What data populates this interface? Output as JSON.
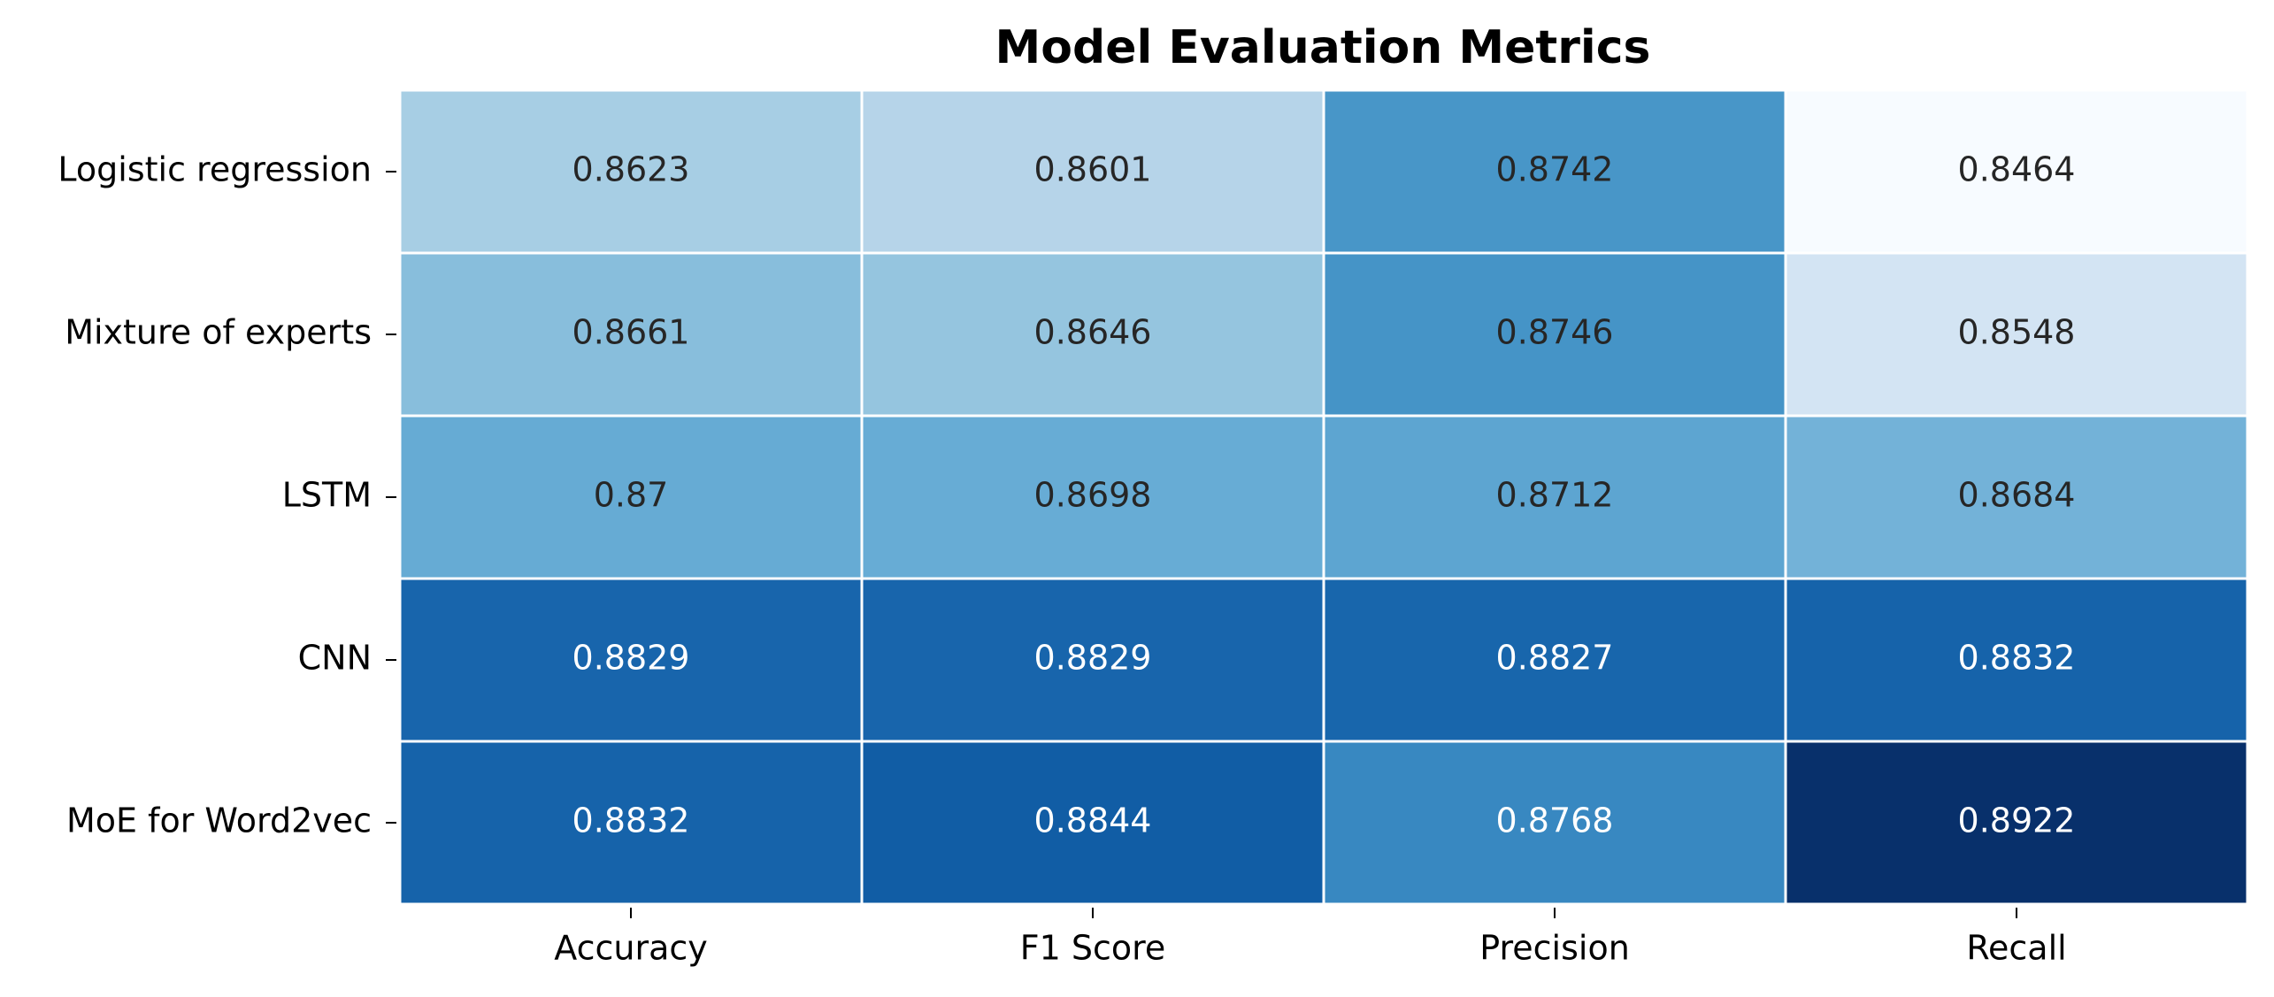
{
  "chart_data": {
    "type": "heatmap",
    "title": "Model Evaluation Metrics",
    "xlabel": "",
    "ylabel": "",
    "x_categories": [
      "Accuracy",
      "F1 Score",
      "Precision",
      "Recall"
    ],
    "y_categories": [
      "Logistic regression",
      "Mixture of experts",
      "LSTM",
      "CNN",
      "MoE for Word2vec"
    ],
    "cell_labels": [
      [
        "0.8623",
        "0.8601",
        "0.8742",
        "0.8464"
      ],
      [
        "0.8661",
        "0.8646",
        "0.8746",
        "0.8548"
      ],
      [
        "0.87",
        "0.8698",
        "0.8712",
        "0.8684"
      ],
      [
        "0.8829",
        "0.8829",
        "0.8827",
        "0.8832"
      ],
      [
        "0.8832",
        "0.8844",
        "0.8768",
        "0.8922"
      ]
    ],
    "values": [
      [
        0.8623,
        0.8601,
        0.8742,
        0.8464
      ],
      [
        0.8661,
        0.8646,
        0.8746,
        0.8548
      ],
      [
        0.87,
        0.8698,
        0.8712,
        0.8684
      ],
      [
        0.8829,
        0.8829,
        0.8827,
        0.8832
      ],
      [
        0.8832,
        0.8844,
        0.8768,
        0.8922
      ]
    ],
    "colormap": "Blues",
    "color_range": [
      0.8464,
      0.8922
    ],
    "colorbar": false,
    "grid_lines_color": "#ffffff",
    "annotation_colors": {
      "light_bg": "#262626",
      "dark_bg": "#ffffff"
    }
  }
}
